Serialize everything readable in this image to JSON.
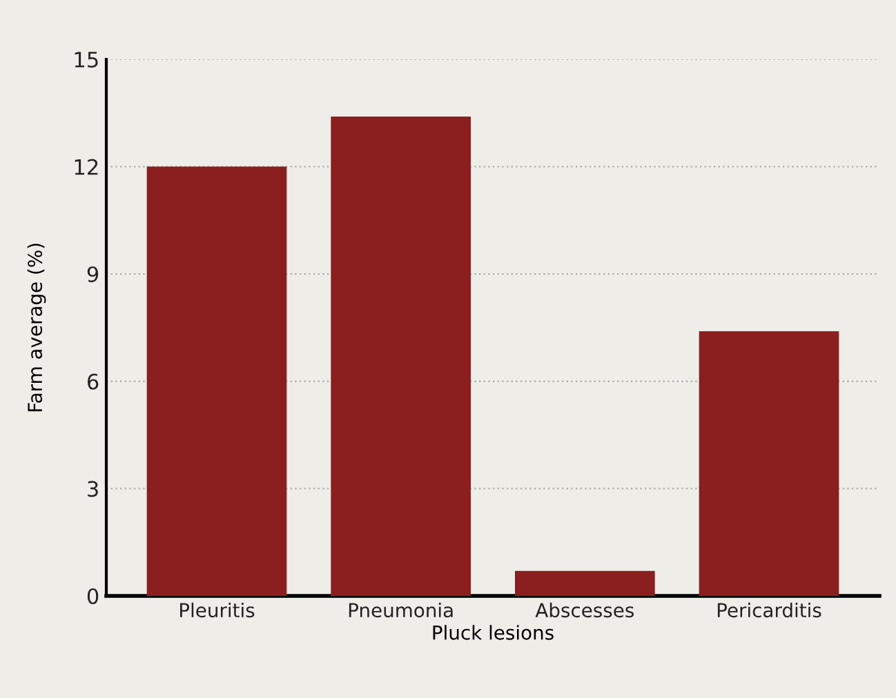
{
  "chart_data": {
    "type": "bar",
    "xlabel": "Pluck lesions",
    "ylabel": "Farm average (%)",
    "categories": [
      "Pleuritis",
      "Pneumonia",
      "Abscesses",
      "Pericarditis"
    ],
    "values": [
      12.0,
      13.4,
      0.7,
      7.4
    ],
    "color": "#8b1e1e",
    "ylim": [
      0,
      15
    ],
    "yticks": [
      0,
      3,
      6,
      9,
      12,
      15
    ],
    "grid": "y"
  }
}
